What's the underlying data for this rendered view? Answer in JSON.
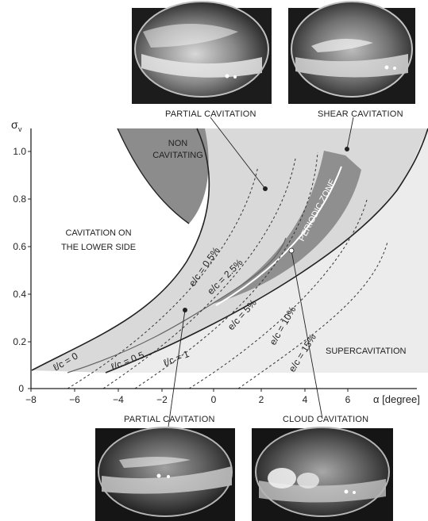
{
  "axes": {
    "y_label": "σ",
    "y_label_sub": "v",
    "x_label": "α [degree]",
    "x_ticks": [
      "−8",
      "−6",
      "−4",
      "−2",
      "0",
      "2",
      "4",
      "6"
    ],
    "y_ticks": [
      "0",
      "0.2",
      "0.4",
      "0.6",
      "0.8",
      "1.0"
    ],
    "xlim": [
      -8,
      8.2
    ],
    "ylim": [
      0,
      1.1
    ]
  },
  "regions": {
    "non_cavitating_1": "NON",
    "non_cavitating_2": "CAVITATING",
    "lower_side_1": "CAVITATION ON",
    "lower_side_2": "THE LOWER SIDE",
    "periodic_zone": "PERIODIC ZONE",
    "supercavitation": "SUPERCAVITATION"
  },
  "curve_labels": {
    "lc0": "ℓ/c = 0",
    "lc05": "ℓ/c = 0.5",
    "lc1": "ℓ/c = 1",
    "ec05": "e/c = 0.5%",
    "ec25": "e/c = 2.5%",
    "ec5": "e/c = 5%",
    "ec10": "e/c = 10%",
    "ec15": "e/c = 15%"
  },
  "photos": {
    "partial_top": "PARTIAL  CAVITATION",
    "shear": "SHEAR  CAVITATION",
    "partial_bottom": "PARTIAL  CAVITATION",
    "cloud": "CLOUD  CAVITATION"
  },
  "colors": {
    "cavitation_region": "#d9d9d9",
    "non_cavitating": "#8c8c8c",
    "periodic_zone": "#8f8f8f",
    "supercavitation": "#ececec"
  }
}
